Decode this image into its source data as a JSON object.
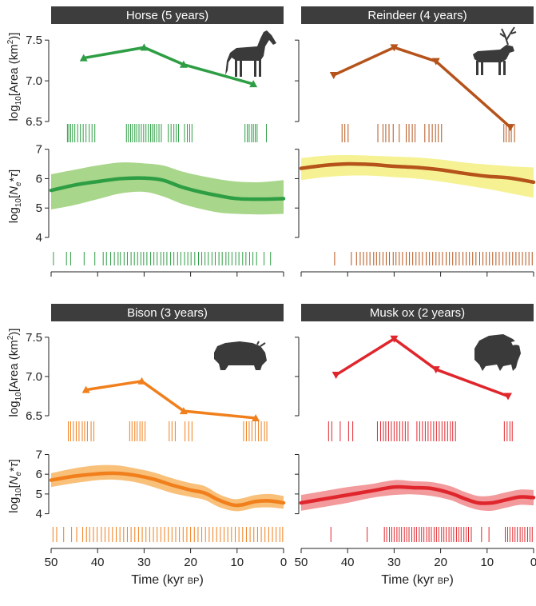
{
  "chart_data": {
    "type": "line",
    "xlabel": "Time (kyr BP)",
    "xlabel_main": "Time (kyr ",
    "xlabel_unit": "BP",
    "xlabel_close": ")",
    "xlim": [
      50,
      0
    ],
    "xticks": [
      50,
      40,
      30,
      20,
      10,
      0
    ],
    "area_ylabel": "log10[Area (km2)]",
    "area_ylim": [
      6.5,
      7.6
    ],
    "area_yticks": [
      6.5,
      7.0,
      7.5
    ],
    "ne_ylabel": "log10[Ne*τ]",
    "ne_ylim": [
      3.7,
      7.1
    ],
    "ne_yticks": [
      4,
      5,
      6,
      7
    ],
    "panels": [
      {
        "title": "Horse (5 years)",
        "line_color": "#2e9e44",
        "band_color": "#a8d68a",
        "area_points": {
          "x": [
            43,
            30,
            21.5,
            6.5
          ],
          "y": [
            7.28,
            7.41,
            7.2,
            6.96
          ]
        },
        "area_samples": [
          46.5,
          46.2,
          45.8,
          45.4,
          44.9,
          44.3,
          43.7,
          43.1,
          42.5,
          41.8,
          41.2,
          40.6,
          33.8,
          33.4,
          32.9,
          32.5,
          32.0,
          31.6,
          31.1,
          30.6,
          30.1,
          29.6,
          29.1,
          28.6,
          28.2,
          27.8,
          27.3,
          26.8,
          26.3,
          24.8,
          24.2,
          23.6,
          23.1,
          22.6,
          21.3,
          20.7,
          20.2,
          19.7,
          8.3,
          7.8,
          7.4,
          6.9,
          6.5,
          6.1,
          5.7,
          3.7
        ],
        "ne": {
          "x": [
            50,
            45,
            40,
            35,
            30,
            26,
            22,
            18,
            14,
            10,
            5,
            0
          ],
          "mean": [
            5.6,
            5.78,
            5.9,
            6.0,
            6.02,
            5.95,
            5.72,
            5.55,
            5.42,
            5.32,
            5.3,
            5.32
          ],
          "lower": [
            4.95,
            5.1,
            5.3,
            5.5,
            5.55,
            5.4,
            5.15,
            4.98,
            4.85,
            4.8,
            4.78,
            4.8
          ],
          "upper": [
            6.15,
            6.3,
            6.45,
            6.55,
            6.52,
            6.45,
            6.25,
            6.1,
            5.98,
            5.9,
            5.88,
            5.95
          ]
        },
        "ne_samples": [
          49.5,
          46.7,
          45.8,
          42.9,
          40.6,
          38.8,
          38.1,
          37.2,
          36.4,
          35.6,
          35.1,
          34.3,
          33.6,
          32.8,
          32.1,
          31.4,
          30.7,
          30.1,
          29.4,
          28.6,
          27.9,
          27.2,
          26.4,
          25.8,
          25.1,
          24.3,
          23.6,
          22.8,
          22.1,
          21.3,
          20.6,
          19.9,
          19.1,
          18.3,
          17.6,
          16.9,
          16.2,
          15.4,
          14.7,
          13.9,
          13.2,
          12.4,
          11.8,
          11.1,
          10.3,
          9.6,
          8.8,
          8.1,
          7.3,
          6.6,
          5.8,
          4.2,
          2.8
        ],
        "marker_style": "up"
      },
      {
        "title": "Reindeer (4 years)",
        "line_color": "#b5531a",
        "band_color": "#f6f294",
        "area_points": {
          "x": [
            43,
            30,
            21,
            5
          ],
          "y": [
            7.07,
            7.41,
            7.24,
            6.43
          ]
        },
        "area_samples": [
          41.2,
          40.6,
          39.9,
          33.5,
          32.4,
          31.8,
          31.1,
          30.2,
          28.9,
          27.4,
          26.8,
          26.1,
          25.5,
          23.4,
          22.5,
          21.8,
          21.1,
          20.5,
          19.8,
          6.4,
          5.9,
          5.3,
          4.8,
          4.1
        ],
        "ne": {
          "x": [
            50,
            45,
            40,
            35,
            30,
            25,
            20,
            15,
            10,
            5,
            0
          ],
          "mean": [
            6.35,
            6.45,
            6.5,
            6.48,
            6.42,
            6.38,
            6.3,
            6.18,
            6.08,
            6.02,
            5.88
          ],
          "lower": [
            5.95,
            6.05,
            6.1,
            6.1,
            6.05,
            6.0,
            5.9,
            5.78,
            5.65,
            5.5,
            5.35
          ],
          "upper": [
            6.7,
            6.78,
            6.8,
            6.78,
            6.75,
            6.72,
            6.65,
            6.55,
            6.48,
            6.42,
            6.38
          ]
        },
        "ne_samples": [
          42.8,
          39.2,
          38.1,
          37.3,
          36.6,
          35.9,
          35.2,
          34.4,
          33.8,
          33.1,
          32.4,
          31.7,
          31.0,
          30.2,
          29.6,
          28.9,
          28.2,
          27.4,
          26.7,
          26.0,
          25.3,
          24.6,
          23.9,
          23.1,
          22.4,
          21.7,
          21.0,
          20.3,
          19.6,
          18.8,
          18.1,
          17.4,
          16.7,
          16.0,
          15.2,
          14.5,
          13.8,
          13.1,
          12.4,
          11.6,
          10.9,
          10.2,
          9.5,
          8.8,
          8.1,
          7.4,
          6.6,
          5.9,
          5.2,
          4.5,
          3.8,
          3.1,
          2.4,
          1.7,
          1.0,
          0.3
        ],
        "marker_style": "down"
      },
      {
        "title": "Bison (3 years)",
        "line_color": "#f07f1c",
        "band_color": "#f9c07a",
        "area_points": {
          "x": [
            42.5,
            30.5,
            21.5,
            6
          ],
          "y": [
            6.83,
            6.94,
            6.56,
            6.47
          ]
        },
        "area_samples": [
          46.3,
          45.8,
          45.2,
          44.6,
          44.0,
          43.3,
          42.8,
          42.2,
          41.4,
          40.8,
          33.1,
          32.6,
          32.0,
          31.5,
          30.9,
          30.4,
          29.8,
          24.6,
          24.0,
          23.3,
          21.2,
          20.4,
          19.7,
          8.6,
          8.0,
          7.4,
          6.8,
          6.1,
          5.4,
          4.8,
          4.1,
          3.6
        ],
        "ne": {
          "x": [
            50,
            45,
            40,
            36,
            32,
            28,
            24,
            20,
            17,
            14,
            11,
            9,
            6,
            3,
            0
          ],
          "mean": [
            5.7,
            5.9,
            6.02,
            6.05,
            5.95,
            5.75,
            5.45,
            5.2,
            5.05,
            4.7,
            4.45,
            4.45,
            4.62,
            4.65,
            4.55
          ],
          "lower": [
            5.35,
            5.55,
            5.7,
            5.72,
            5.6,
            5.35,
            5.05,
            4.85,
            4.7,
            4.35,
            4.15,
            4.15,
            4.3,
            4.32,
            4.25
          ],
          "upper": [
            6.05,
            6.3,
            6.45,
            6.45,
            6.3,
            6.1,
            5.8,
            5.55,
            5.4,
            5.0,
            4.75,
            4.78,
            4.95,
            5.0,
            4.9
          ]
        },
        "ne_samples": [
          49.6,
          48.8,
          47.3,
          45.6,
          44.5,
          43.2,
          42.4,
          41.7,
          40.9,
          40.1,
          39.2,
          38.4,
          37.6,
          36.8,
          36.0,
          35.2,
          34.4,
          33.6,
          32.8,
          32.0,
          31.2,
          30.4,
          29.6,
          28.8,
          28.0,
          27.2,
          26.4,
          25.6,
          24.8,
          24.0,
          23.2,
          22.4,
          21.6,
          20.8,
          20.0,
          19.2,
          18.4,
          17.6,
          16.8,
          16.0,
          15.2,
          14.4,
          13.6,
          12.8,
          12.0,
          11.2,
          10.4,
          9.6,
          8.8,
          8.0,
          7.2,
          6.4,
          5.6,
          4.8,
          4.0,
          3.2,
          2.4,
          1.6,
          0.8,
          0.2
        ],
        "marker_style": "up"
      },
      {
        "title": "Musk ox (2 years)",
        "line_color": "#e0262d",
        "band_color": "#f29a9c",
        "area_points": {
          "x": [
            42.5,
            30,
            21,
            5.5
          ],
          "y": [
            7.02,
            7.48,
            7.09,
            6.75
          ]
        },
        "area_samples": [
          44.1,
          43.4,
          41.6,
          39.8,
          38.9,
          33.6,
          32.9,
          32.3,
          31.8,
          31.2,
          30.6,
          30.0,
          29.4,
          28.8,
          28.2,
          27.6,
          27.0,
          25.1,
          24.5,
          23.9,
          23.3,
          22.7,
          22.1,
          21.5,
          20.9,
          20.3,
          19.7,
          19.1,
          18.5,
          17.9,
          17.4,
          16.8,
          6.3,
          5.7,
          5.1,
          4.6
        ],
        "ne": {
          "x": [
            50,
            45,
            40,
            35,
            30,
            26,
            22,
            18,
            15,
            12,
            9,
            6,
            3,
            0
          ],
          "mean": [
            4.55,
            4.75,
            4.95,
            5.15,
            5.35,
            5.32,
            5.28,
            5.05,
            4.78,
            4.55,
            4.55,
            4.7,
            4.85,
            4.82
          ],
          "lower": [
            4.15,
            4.35,
            4.55,
            4.8,
            4.95,
            4.98,
            4.9,
            4.7,
            4.42,
            4.2,
            4.15,
            4.3,
            4.45,
            4.42
          ],
          "upper": [
            4.95,
            5.15,
            5.35,
            5.5,
            5.7,
            5.65,
            5.6,
            5.4,
            5.12,
            4.9,
            4.92,
            5.08,
            5.22,
            5.2
          ]
        },
        "ne_samples": [
          43.6,
          35.8,
          32.1,
          31.6,
          31.0,
          30.5,
          30.0,
          29.4,
          28.9,
          28.4,
          27.8,
          27.3,
          26.8,
          26.2,
          25.7,
          25.2,
          24.6,
          24.1,
          23.6,
          23.0,
          22.5,
          22.0,
          21.4,
          20.9,
          20.4,
          19.8,
          19.3,
          18.8,
          18.2,
          17.7,
          17.2,
          16.6,
          16.1,
          15.6,
          15.0,
          14.5,
          14.0,
          13.4,
          11.2,
          9.6,
          6.1,
          5.6,
          5.1,
          4.5,
          4.0,
          3.5,
          2.9,
          2.4,
          1.9,
          1.3,
          0.8,
          0.3
        ],
        "marker_style": "down"
      }
    ]
  }
}
